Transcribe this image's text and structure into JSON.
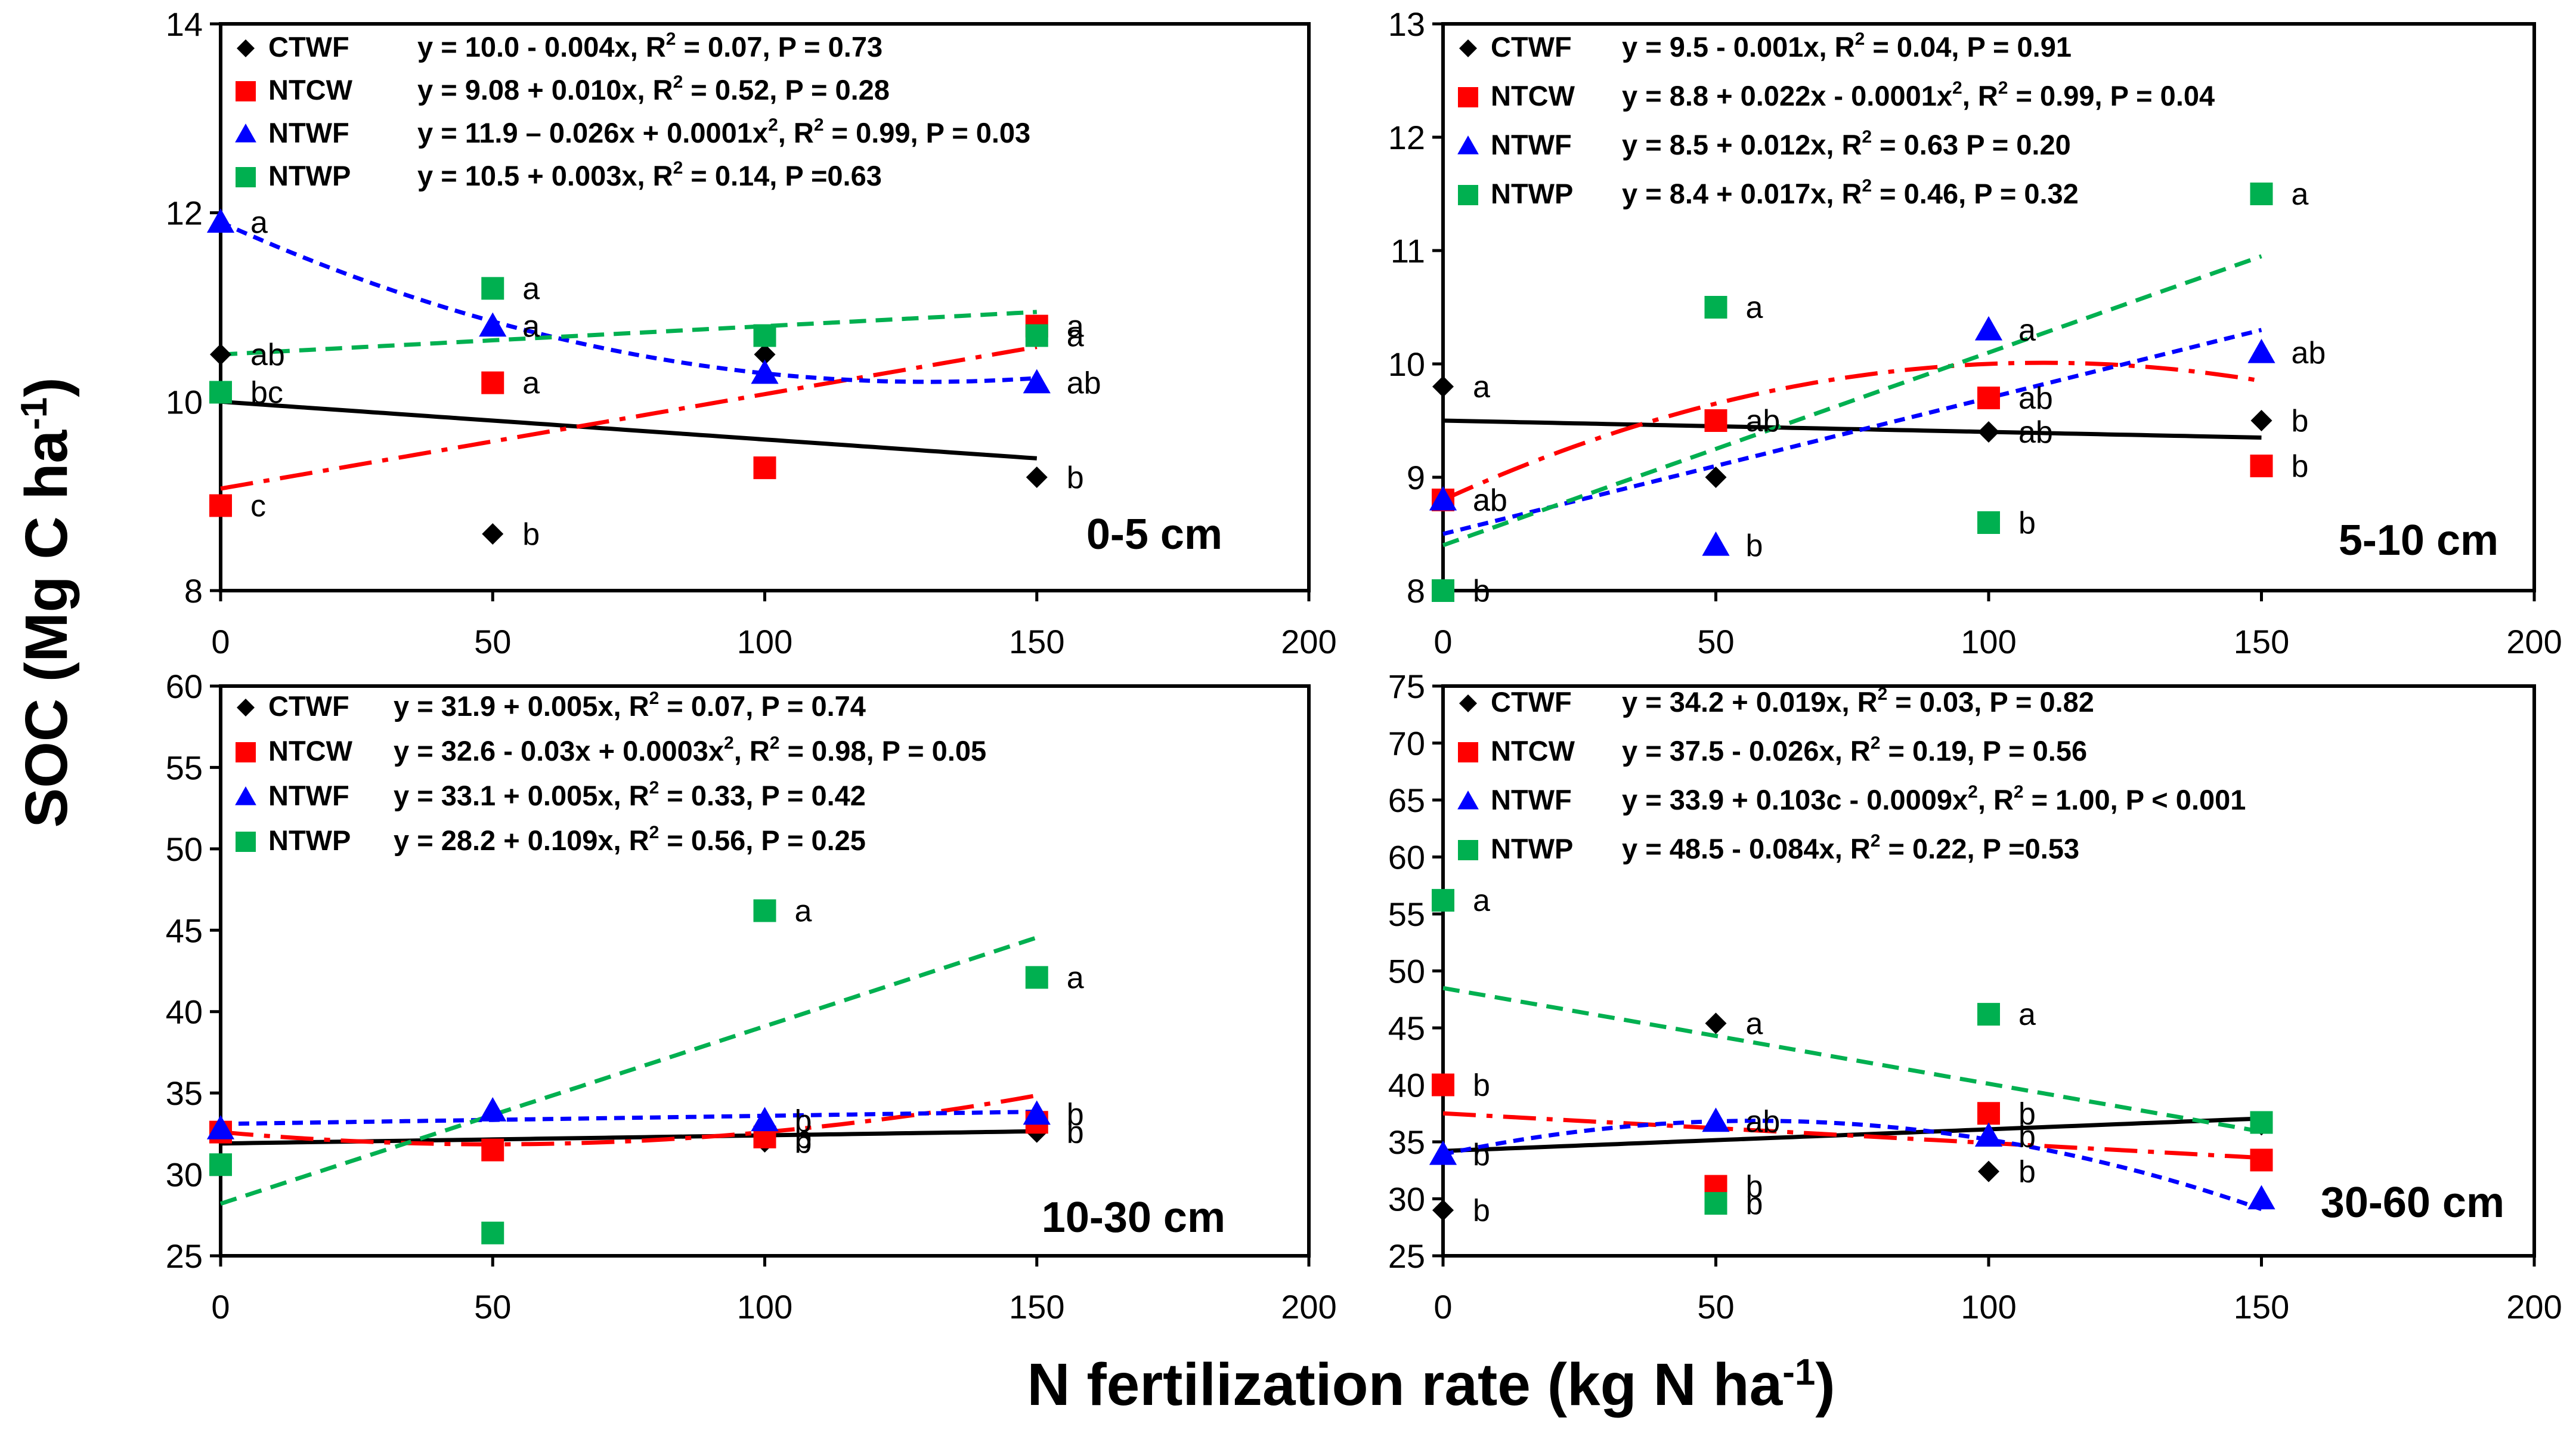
{
  "axis": {
    "ylabel_main": "SOC (Mg C ha",
    "ylabel_sup": "-1",
    "ylabel_end": ")",
    "xlabel_main": "N fertilization rate (kg N ha",
    "xlabel_sup": "-1",
    "xlabel_end": ")"
  },
  "colors": {
    "CTWF": "#000000",
    "NTCW": "#ff0000",
    "NTWF": "#0000ff",
    "NTWP": "#00b050"
  },
  "chart_data": [
    {
      "type": "scatter",
      "title": "0-5 cm",
      "xlim": [
        0,
        200
      ],
      "ylim": [
        8,
        14
      ],
      "xticks": [
        "0",
        "50",
        "100",
        "150",
        "200"
      ],
      "yticks": [
        "8",
        "10",
        "12",
        "14"
      ],
      "legend": [
        {
          "name": "CTWF",
          "pre": "y = 10.0 - 0.004x, R",
          "sup": "2",
          "post": " = 0.07, P = 0.73"
        },
        {
          "name": "NTCW",
          "pre": "y = 9.08 + 0.010x, R",
          "sup": "2",
          "post": " = 0.52, P = 0.28"
        },
        {
          "name": "NTWF",
          "pre": "y = 11.9 – 0.026x + 0.0001x",
          "sup": "2",
          "mid": ", R",
          "sup2": "2",
          "post": " = 0.99, P = 0.03"
        },
        {
          "name": "NTWP",
          "pre": "y = 10.5 + 0.003x, R",
          "sup": "2",
          "post": " = 0.14, P =0.63"
        }
      ],
      "series": [
        {
          "name": "CTWF",
          "marker": "diamond",
          "x": [
            0,
            50,
            100,
            150
          ],
          "y": [
            10.5,
            8.6,
            10.5,
            9.2
          ],
          "letters": [
            "ab",
            "b",
            "",
            "b"
          ],
          "fit": [
            10.0,
            -0.004,
            0
          ]
        },
        {
          "name": "NTCW",
          "marker": "square",
          "x": [
            0,
            50,
            100,
            150
          ],
          "y": [
            8.9,
            10.2,
            9.3,
            10.8
          ],
          "letters": [
            "c",
            "a",
            "",
            "a"
          ],
          "fit": [
            9.08,
            0.01,
            0
          ]
        },
        {
          "name": "NTWF",
          "marker": "triangle",
          "x": [
            0,
            50,
            100,
            150
          ],
          "y": [
            11.9,
            10.8,
            10.3,
            10.2
          ],
          "letters": [
            "a",
            "a",
            "",
            "ab"
          ],
          "fit": [
            11.9,
            -0.026,
            0.0001
          ]
        },
        {
          "name": "NTWP",
          "marker": "square",
          "x": [
            0,
            50,
            100,
            150
          ],
          "y": [
            10.1,
            11.2,
            10.7,
            10.7
          ],
          "letters": [
            "bc",
            "a",
            "",
            "a"
          ],
          "fit": [
            10.5,
            0.003,
            0
          ]
        }
      ]
    },
    {
      "type": "scatter",
      "title": "5-10 cm",
      "xlim": [
        0,
        200
      ],
      "ylim": [
        8,
        13
      ],
      "xticks": [
        "0",
        "50",
        "100",
        "150",
        "200"
      ],
      "yticks": [
        "8",
        "9",
        "10",
        "11",
        "12",
        "13"
      ],
      "legend": [
        {
          "name": "CTWF",
          "pre": "y = 9.5 - 0.001x, R",
          "sup": "2",
          "post": " = 0.04, P = 0.91"
        },
        {
          "name": "NTCW",
          "pre": "y = 8.8 + 0.022x - 0.0001x",
          "sup": "2",
          "mid": ", R",
          "sup2": "2",
          "post": " = 0.99, P = 0.04"
        },
        {
          "name": "NTWF",
          "pre": "y = 8.5 + 0.012x, R",
          "sup": "2",
          "post": " = 0.63 P = 0.20"
        },
        {
          "name": "NTWP",
          "pre": "y = 8.4 + 0.017x, R",
          "sup": "2",
          "post": " = 0.46, P = 0.32"
        }
      ],
      "series": [
        {
          "name": "CTWF",
          "marker": "diamond",
          "x": [
            0,
            50,
            100,
            150
          ],
          "y": [
            9.8,
            9.0,
            9.4,
            9.5
          ],
          "letters": [
            "a",
            "",
            "ab",
            "b"
          ],
          "fit": [
            9.5,
            -0.001,
            0
          ]
        },
        {
          "name": "NTCW",
          "marker": "square",
          "x": [
            0,
            50,
            100,
            150
          ],
          "y": [
            8.8,
            9.5,
            9.7,
            9.1
          ],
          "letters": [
            "ab",
            "ab",
            "ab",
            "b"
          ],
          "fit": [
            8.8,
            0.022,
            -0.0001
          ]
        },
        {
          "name": "NTWF",
          "marker": "triangle",
          "x": [
            0,
            50,
            100,
            150
          ],
          "y": [
            8.8,
            8.4,
            10.3,
            10.1
          ],
          "letters": [
            "ab",
            "b",
            "a",
            "ab"
          ],
          "fit": [
            8.5,
            0.012,
            0
          ]
        },
        {
          "name": "NTWP",
          "marker": "square",
          "x": [
            0,
            50,
            100,
            150
          ],
          "y": [
            8.0,
            10.5,
            8.6,
            11.5
          ],
          "letters": [
            "b",
            "a",
            "b",
            "a"
          ],
          "fit": [
            8.4,
            0.017,
            0
          ]
        }
      ]
    },
    {
      "type": "scatter",
      "title": "10-30 cm",
      "xlim": [
        0,
        200
      ],
      "ylim": [
        25,
        60
      ],
      "xticks": [
        "0",
        "50",
        "100",
        "150",
        "200"
      ],
      "yticks": [
        "25",
        "30",
        "35",
        "40",
        "45",
        "50",
        "55",
        "60"
      ],
      "legend": [
        {
          "name": "CTWF",
          "pre": "y = 31.9 + 0.005x, R",
          "sup": "2",
          "post": " = 0.07, P = 0.74"
        },
        {
          "name": "NTCW",
          "pre": "y = 32.6 - 0.03x + 0.0003x",
          "sup": "2",
          "mid": ", R",
          "sup2": "2",
          "post": " = 0.98, P = 0.05"
        },
        {
          "name": "NTWF",
          "pre": "y = 33.1 + 0.005x, R",
          "sup": "2",
          "post": " = 0.33, P = 0.42"
        },
        {
          "name": "NTWP",
          "pre": "y = 28.2 + 0.109x, R",
          "sup": "2",
          "post": " = 0.56, P = 0.25"
        }
      ],
      "series": [
        {
          "name": "CTWF",
          "marker": "diamond",
          "x": [
            0,
            50,
            100,
            150
          ],
          "y": [
            32.8,
            31.5,
            32.0,
            32.6
          ],
          "letters": [
            "",
            "",
            "b",
            "b"
          ],
          "fit": [
            31.9,
            0.005,
            0
          ]
        },
        {
          "name": "NTCW",
          "marker": "square",
          "x": [
            0,
            50,
            100,
            150
          ],
          "y": [
            32.6,
            31.5,
            32.3,
            33.2
          ],
          "letters": [
            "",
            "",
            "b",
            ""
          ],
          "fit": [
            32.6,
            -0.03,
            0.0003
          ]
        },
        {
          "name": "NTWF",
          "marker": "triangle",
          "x": [
            0,
            50,
            100,
            150
          ],
          "y": [
            32.8,
            33.9,
            33.3,
            33.7
          ],
          "letters": [
            "",
            "",
            "b",
            "b"
          ],
          "fit": [
            33.1,
            0.005,
            0
          ]
        },
        {
          "name": "NTWP",
          "marker": "square",
          "x": [
            0,
            50,
            100,
            150
          ],
          "y": [
            30.6,
            26.4,
            46.2,
            42.1
          ],
          "letters": [
            "",
            "",
            "a",
            "a"
          ],
          "fit": [
            28.2,
            0.109,
            0
          ]
        }
      ]
    },
    {
      "type": "scatter",
      "title": "30-60 cm",
      "xlim": [
        0,
        200
      ],
      "ylim": [
        25,
        75
      ],
      "xticks": [
        "0",
        "50",
        "100",
        "150",
        "200"
      ],
      "yticks": [
        "25",
        "30",
        "35",
        "40",
        "45",
        "50",
        "55",
        "60",
        "65",
        "70",
        "75"
      ],
      "legend": [
        {
          "name": "CTWF",
          "pre": "y = 34.2 + 0.019x, R",
          "sup": "2",
          "post": " = 0.03, P = 0.82"
        },
        {
          "name": "NTCW",
          "pre": "y = 37.5 - 0.026x, R",
          "sup": "2",
          "post": " = 0.19, P = 0.56"
        },
        {
          "name": "NTWF",
          "pre": "y = 33.9 + 0.103c - 0.0009x",
          "sup": "2",
          "mid": ", R",
          "sup2": "2",
          "post": " = 1.00, P < 0.001"
        },
        {
          "name": "NTWP",
          "pre": "y = 48.5 - 0.084x, R",
          "sup": "2",
          "post": " = 0.22, P =0.53"
        }
      ],
      "series": [
        {
          "name": "CTWF",
          "marker": "diamond",
          "x": [
            0,
            50,
            100,
            150
          ],
          "y": [
            29.0,
            45.4,
            32.4,
            36.5
          ],
          "letters": [
            "b",
            "a",
            "b",
            ""
          ],
          "fit": [
            34.2,
            0.019,
            0
          ]
        },
        {
          "name": "NTCW",
          "marker": "square",
          "x": [
            0,
            50,
            100,
            150
          ],
          "y": [
            40.0,
            31.1,
            37.5,
            33.4
          ],
          "letters": [
            "b",
            "b",
            "b",
            ""
          ],
          "fit": [
            37.5,
            -0.026,
            0
          ]
        },
        {
          "name": "NTWF",
          "marker": "triangle",
          "x": [
            0,
            50,
            100,
            150
          ],
          "y": [
            33.9,
            36.8,
            35.5,
            30.0
          ],
          "letters": [
            "b",
            "ab",
            "b",
            ""
          ],
          "fit": [
            33.9,
            0.103,
            -0.0009
          ]
        },
        {
          "name": "NTWP",
          "marker": "square",
          "x": [
            0,
            50,
            100,
            150
          ],
          "y": [
            56.2,
            29.6,
            46.2,
            36.7
          ],
          "letters": [
            "a",
            "b",
            "a",
            ""
          ],
          "fit": [
            48.5,
            -0.084,
            0
          ]
        }
      ]
    }
  ]
}
